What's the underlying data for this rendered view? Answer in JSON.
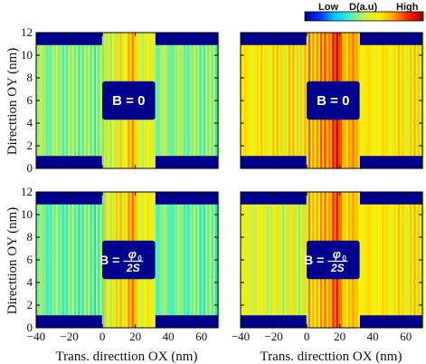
{
  "chart_data": {
    "type": "heatmap",
    "colorbar": {
      "label_low": "Low",
      "label_mid": "D(a.u)",
      "label_high": "High",
      "colormap": [
        "#00008c",
        "#0032ff",
        "#00c8ff",
        "#3cf0c8",
        "#c8f050",
        "#fff000",
        "#ffa000",
        "#ff2000",
        "#8c0000"
      ]
    },
    "x_ticks": [
      "−40",
      "−20",
      "0",
      "20",
      "40",
      "60"
    ],
    "y_ticks": [
      "0",
      "2",
      "4",
      "6",
      "8",
      "10",
      "12"
    ],
    "xlabel": "Trans. directtion OX (nm)",
    "ylabel": "Directtion OY (nm)",
    "xlim": [
      -40,
      70
    ],
    "ylim": [
      0,
      12
    ],
    "panels": [
      {
        "id": "top-left",
        "label_prefix": "B = ",
        "label_value": "0",
        "flux_label": false,
        "left_level": 0.45,
        "center_level": 0.55,
        "right_level": 0.45
      },
      {
        "id": "top-right",
        "label_prefix": "B = ",
        "label_value": "0",
        "flux_label": false,
        "left_level": 0.62,
        "center_level": 0.72,
        "right_level": 0.62
      },
      {
        "id": "bottom-left",
        "label_prefix": "B = ",
        "label_value": "",
        "flux_label": true,
        "flux_num": "φ",
        "flux_sub": "0",
        "flux_den": "2S",
        "left_level": 0.42,
        "center_level": 0.58,
        "right_level": 0.42
      },
      {
        "id": "bottom-right",
        "label_prefix": "B = ",
        "label_value": "",
        "flux_label": true,
        "flux_num": "φ",
        "flux_sub": "0",
        "flux_den": "2S",
        "left_level": 0.55,
        "center_level": 0.68,
        "right_level": 0.62
      }
    ]
  }
}
